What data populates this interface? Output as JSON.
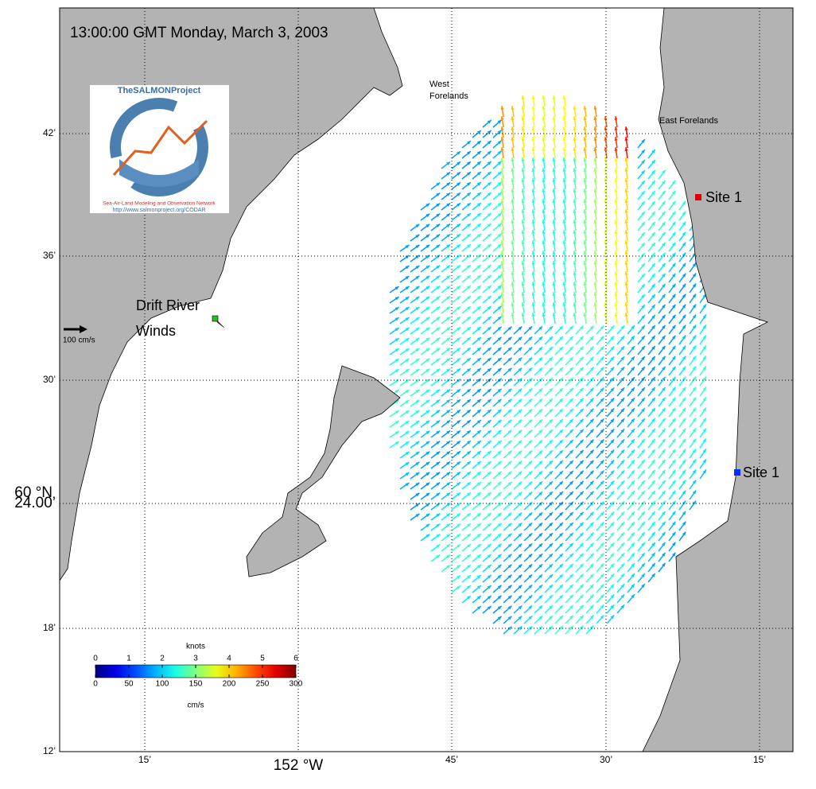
{
  "title": "13:00:00 GMT Monday, March 3, 2003",
  "logo": {
    "name": "TheSALMONProject",
    "subtitle": "Sea-Air-Land Modeling and Observation Network",
    "url": "http://www.salmonproject.org/CODAR"
  },
  "places": {
    "west_1": "West",
    "west_2": "Forelands",
    "east": "East Forelands",
    "site_north": "Site 1",
    "site_south": "Site 1",
    "drift_1": "Drift River",
    "drift_2": "Winds"
  },
  "scale_arrow": "100 cm/s",
  "lat_labels": [
    "42’",
    "36’",
    "30’",
    "24.00’",
    "18’",
    "12’"
  ],
  "lat_main": "60 °N",
  "lon_labels": [
    "15’",
    "45’",
    "30’",
    "15’"
  ],
  "lon_main": "152 °W",
  "colorbar": {
    "top_label": "knots",
    "top_ticks": [
      0,
      1,
      2,
      3,
      4,
      5,
      6
    ],
    "bottom_label": "cm/s",
    "bottom_ticks": [
      0,
      50,
      100,
      150,
      200,
      250,
      300
    ]
  }
}
